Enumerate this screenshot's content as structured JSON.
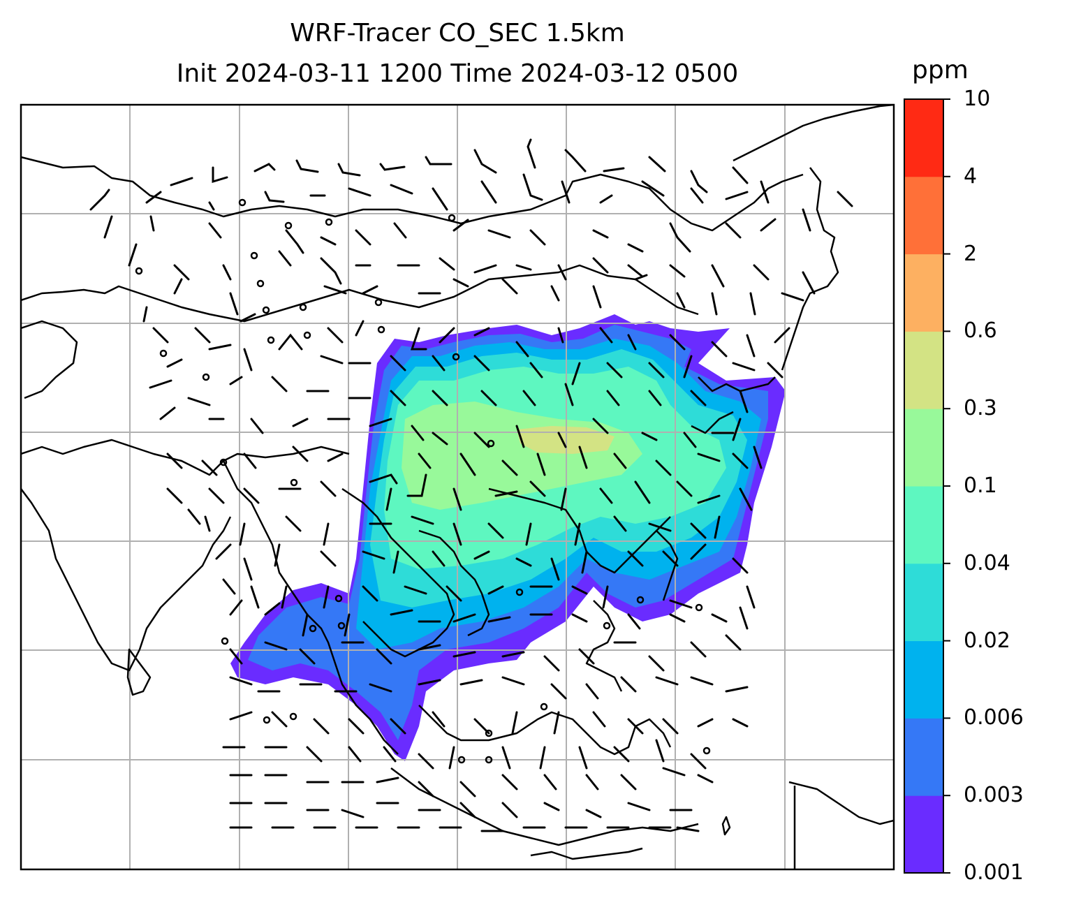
{
  "title": {
    "line1": "WRF-Tracer CO_SEC 1.5km",
    "line2": "Init 2024-03-11 1200 Time 2024-03-12 0500"
  },
  "colorbar": {
    "unit": "ppm",
    "ticks": [
      "0.001",
      "0.003",
      "0.006",
      "0.02",
      "0.04",
      "0.1",
      "0.3",
      "0.6",
      "2",
      "4",
      "10"
    ],
    "colors": [
      "#6a2cff",
      "#3578f6",
      "#00b2ee",
      "#2edcd8",
      "#5ef7c0",
      "#98f99a",
      "#d3e384",
      "#fdb061",
      "#ff7038",
      "#ff2a14"
    ]
  },
  "map": {
    "gridlines": true,
    "grid_color": "#b0b0b0",
    "coastline_color": "#000000",
    "field": "CO_SEC tracer",
    "level": "1.5km",
    "overlay": "wind barbs"
  }
}
